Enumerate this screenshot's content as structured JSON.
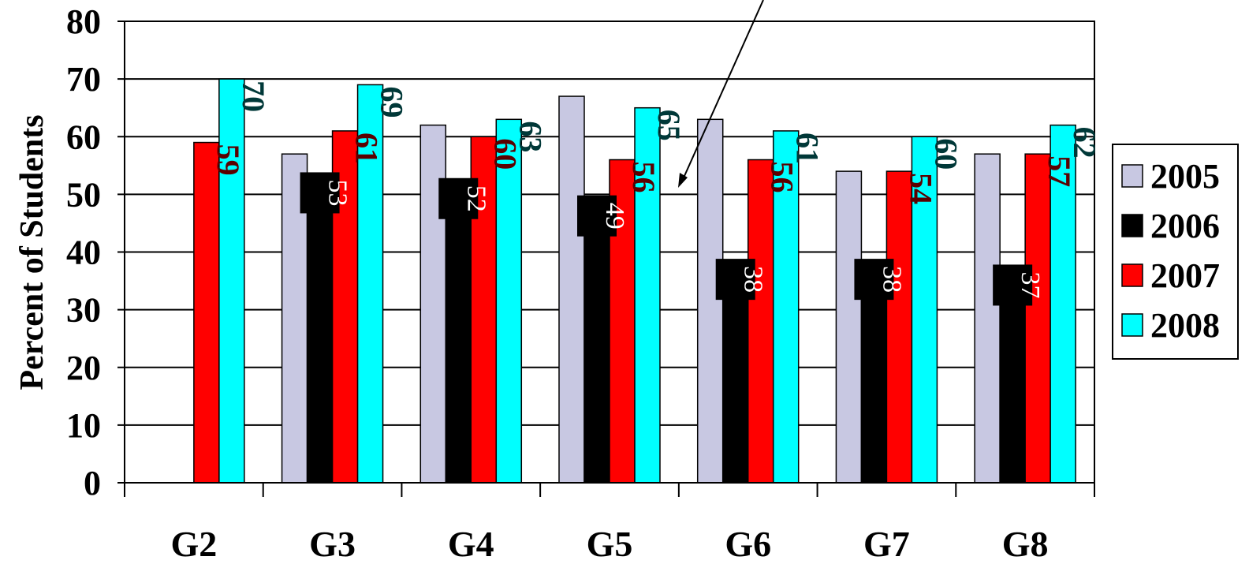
{
  "chart_data": {
    "type": "bar",
    "title": "",
    "xlabel": "",
    "ylabel": "Percent of Students",
    "ylim": [
      0,
      80
    ],
    "yticks": [
      0,
      10,
      20,
      30,
      40,
      50,
      60,
      70,
      80
    ],
    "grid": true,
    "legend_position": "right",
    "categories": [
      "G2",
      "G3",
      "G4",
      "G5",
      "G6",
      "G7",
      "G8"
    ],
    "series": [
      {
        "name": "2005",
        "color": "#c8c8e2",
        "values": [
          null,
          57,
          62,
          67,
          63,
          54,
          57
        ],
        "labels_shown": false
      },
      {
        "name": "2006",
        "color": "#000000",
        "values": [
          null,
          53,
          52,
          49,
          38,
          38,
          37
        ],
        "labels_shown": true,
        "label_style": "boxed-white"
      },
      {
        "name": "2007",
        "color": "#ff0000",
        "values": [
          59,
          61,
          60,
          56,
          56,
          54,
          57
        ],
        "labels_shown": true,
        "label_style": "dark-red"
      },
      {
        "name": "2008",
        "color": "#00ffff",
        "values": [
          70,
          69,
          63,
          65,
          61,
          60,
          62
        ],
        "labels_shown": true,
        "label_style": "dark-cyan"
      }
    ],
    "annotation": {
      "type": "arrow",
      "pointing_to": "G5-G6 gap near 52"
    }
  }
}
